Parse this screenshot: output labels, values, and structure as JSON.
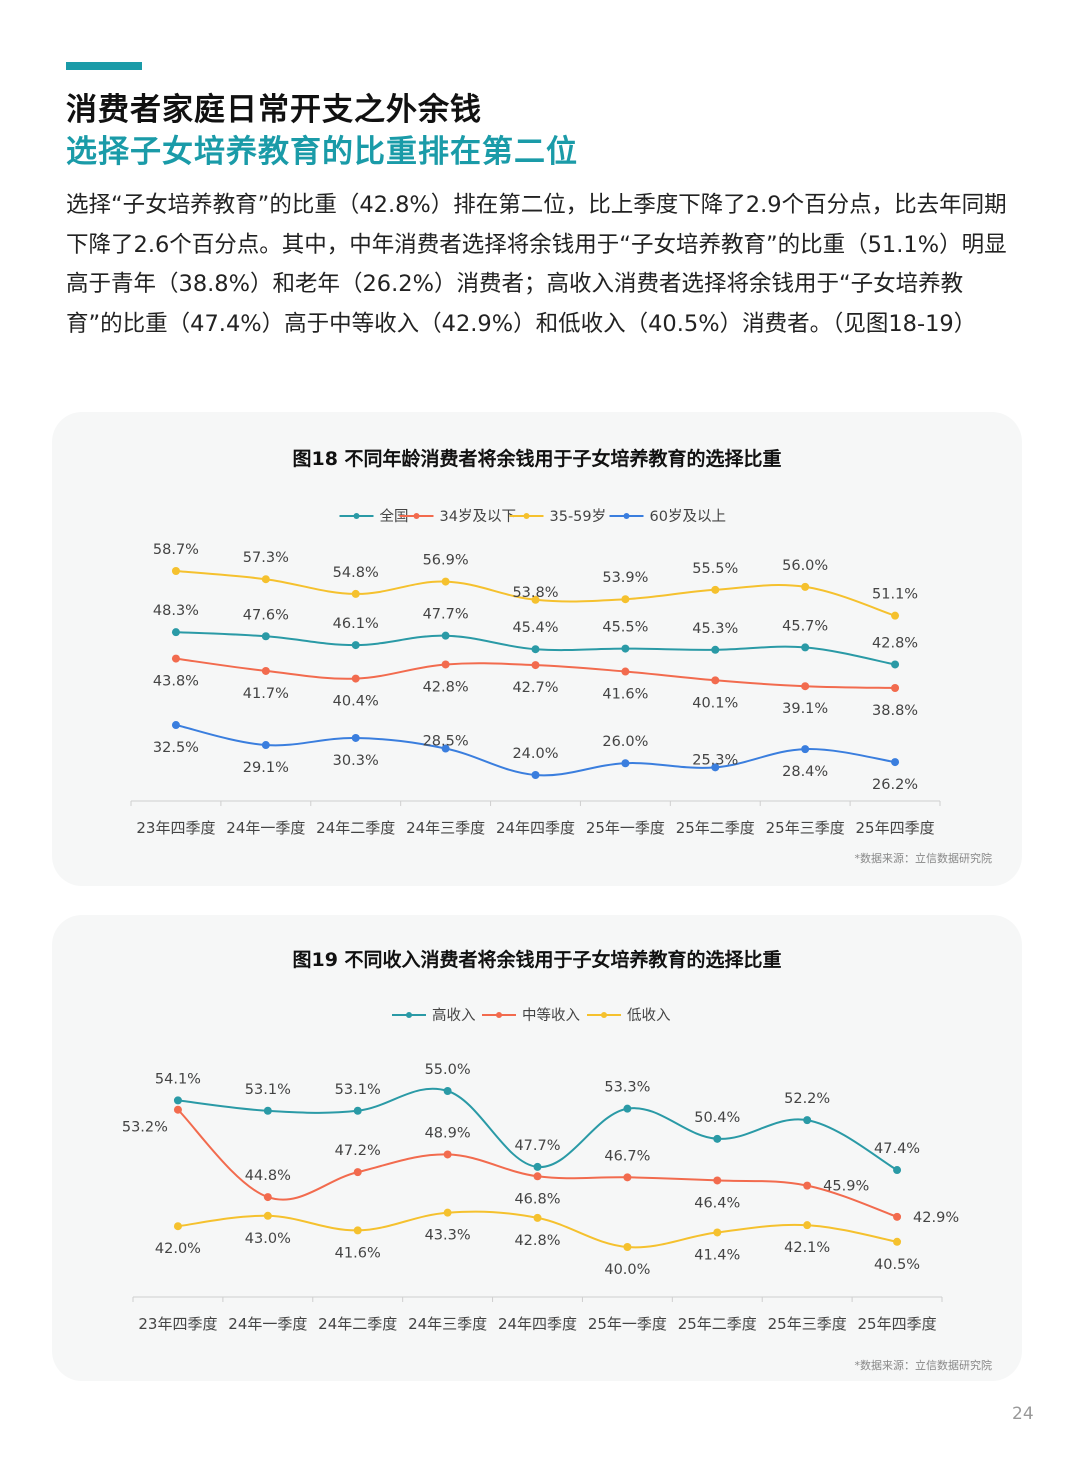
{
  "header": {
    "title_line1": "消费者家庭日常开支之外余钱",
    "title_line2": "选择子女培养教育的比重排在第二位"
  },
  "body": {
    "paragraph": "选择“子女培养教育”的比重（42.8%）排在第二位，比上季度下降了2.9个百分点，比去年同期下降了2.6个百分点。其中，中年消费者选择将余钱用于“子女培养教育”的比重（51.1%）明显高于青年（38.8%）和老年（26.2%）消费者；高收入消费者选择将余钱用于“子女培养教育”的比重（47.4%）高于中等收入（42.9%）和低收入（40.5%）消费者。（见图18-19）"
  },
  "chart_data": [
    {
      "type": "line",
      "title": "图18 不同年龄消费者将余钱用于子女培养教育的选择比重",
      "categories": [
        "23年四季度",
        "24年一季度",
        "24年二季度",
        "24年三季度",
        "24年四季度",
        "25年一季度",
        "25年二季度",
        "25年三季度",
        "25年四季度"
      ],
      "series": [
        {
          "name": "全国",
          "color": "#2a9aa6",
          "values": [
            48.3,
            47.6,
            46.1,
            47.7,
            45.4,
            45.5,
            45.3,
            45.7,
            42.8
          ]
        },
        {
          "name": "34岁及以下",
          "color": "#f26b4e",
          "values": [
            43.8,
            41.7,
            40.4,
            42.8,
            42.7,
            41.6,
            40.1,
            39.1,
            38.8
          ]
        },
        {
          "name": "35-59岁",
          "color": "#f5c12e",
          "values": [
            58.7,
            57.3,
            54.8,
            56.9,
            53.8,
            53.9,
            55.5,
            56.0,
            51.1
          ]
        },
        {
          "name": "60岁及以上",
          "color": "#3a7ede",
          "values": [
            32.5,
            29.1,
            30.3,
            28.5,
            24.0,
            26.0,
            25.3,
            28.4,
            26.2
          ]
        }
      ],
      "value_suffix": "%",
      "legend": "top-center",
      "grid": false,
      "source": "*数据来源：立信数据研究院"
    },
    {
      "type": "line",
      "title": "图19 不同收入消费者将余钱用于子女培养教育的选择比重",
      "categories": [
        "23年四季度",
        "24年一季度",
        "24年二季度",
        "24年三季度",
        "24年四季度",
        "25年一季度",
        "25年二季度",
        "25年三季度",
        "25年四季度"
      ],
      "series": [
        {
          "name": "高收入",
          "color": "#2a9aa6",
          "values": [
            54.1,
            53.1,
            53.1,
            55.0,
            47.7,
            53.3,
            50.4,
            52.2,
            47.4
          ]
        },
        {
          "name": "中等收入",
          "color": "#f26b4e",
          "values": [
            53.2,
            44.8,
            47.2,
            48.9,
            46.8,
            46.7,
            46.4,
            45.9,
            42.9
          ]
        },
        {
          "name": "低收入",
          "color": "#f5c12e",
          "values": [
            42.0,
            43.0,
            41.6,
            43.3,
            42.8,
            40.0,
            41.4,
            42.1,
            40.5
          ]
        }
      ],
      "value_suffix": "%",
      "legend": "top-center",
      "grid": false,
      "source": "*数据来源：立信数据研究院"
    }
  ],
  "footer": {
    "page_number": "24"
  }
}
